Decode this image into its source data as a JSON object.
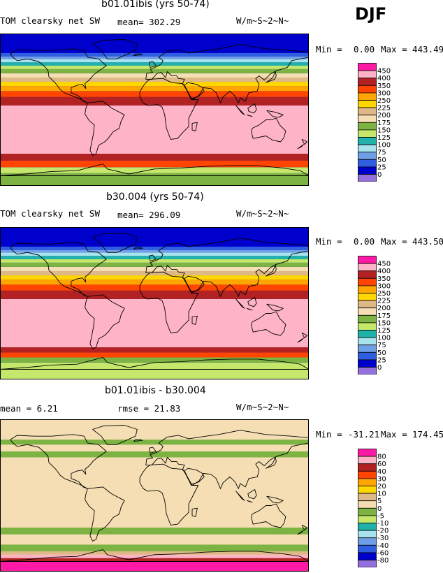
{
  "season": "DJF",
  "panels": [
    {
      "title": "b01.01ibis (yrs 50-74)",
      "left_label": "TOM clearsky net SW",
      "mid_label": "mean=  302.29",
      "units": "W/m~S~2~N~",
      "min_label": "Min =",
      "min_value": "0.00",
      "max_label": "Max =",
      "max_value": "443.49",
      "legend": [
        {
          "label": "450",
          "color": "#ff1aa6"
        },
        {
          "label": "400",
          "color": "#ffb3c6"
        },
        {
          "label": "350",
          "color": "#b22222"
        },
        {
          "label": "300",
          "color": "#ff4500"
        },
        {
          "label": "250",
          "color": "#ffa500"
        },
        {
          "label": "225",
          "color": "#ffd700"
        },
        {
          "label": "200",
          "color": "#deb887"
        },
        {
          "label": "175",
          "color": "#f5deb3"
        },
        {
          "label": "150",
          "color": "#7cb342"
        },
        {
          "label": "125",
          "color": "#c5e86c"
        },
        {
          "label": "100",
          "color": "#20b2aa"
        },
        {
          "label": "75",
          "color": "#a7e3ec"
        },
        {
          "label": "50",
          "color": "#6f9fe6"
        },
        {
          "label": "25",
          "color": "#2f5fe0"
        },
        {
          "label": "0",
          "color": "#0000cd"
        },
        {
          "label": "",
          "color": "#9370db"
        }
      ]
    },
    {
      "title": "b30.004 (yrs 50-74)",
      "left_label": "TOM clearsky net SW",
      "mid_label": "mean=  296.09",
      "units": "W/m~S~2~N~",
      "min_label": "Min =",
      "min_value": "0.00",
      "max_label": "Max =",
      "max_value": "443.50",
      "legend": [
        {
          "label": "450",
          "color": "#ff1aa6"
        },
        {
          "label": "400",
          "color": "#ffb3c6"
        },
        {
          "label": "350",
          "color": "#b22222"
        },
        {
          "label": "300",
          "color": "#ff4500"
        },
        {
          "label": "250",
          "color": "#ffa500"
        },
        {
          "label": "225",
          "color": "#ffd700"
        },
        {
          "label": "200",
          "color": "#deb887"
        },
        {
          "label": "175",
          "color": "#f5deb3"
        },
        {
          "label": "150",
          "color": "#7cb342"
        },
        {
          "label": "125",
          "color": "#c5e86c"
        },
        {
          "label": "100",
          "color": "#20b2aa"
        },
        {
          "label": "75",
          "color": "#a7e3ec"
        },
        {
          "label": "50",
          "color": "#6f9fe6"
        },
        {
          "label": "25",
          "color": "#2f5fe0"
        },
        {
          "label": "0",
          "color": "#0000cd"
        },
        {
          "label": "",
          "color": "#9370db"
        }
      ]
    },
    {
      "title": "b01.01ibis - b30.004",
      "left_label": "mean =    6.21",
      "mid_label": "rmse =  21.83",
      "units": "W/m~S~2~N~",
      "min_label": "Min =",
      "min_value": "-31.21",
      "max_label": "Max =",
      "max_value": "174.45",
      "legend": [
        {
          "label": "80",
          "color": "#ff1aa6"
        },
        {
          "label": "60",
          "color": "#ffb3c6"
        },
        {
          "label": "40",
          "color": "#b22222"
        },
        {
          "label": "30",
          "color": "#ff4500"
        },
        {
          "label": "20",
          "color": "#ffa500"
        },
        {
          "label": "10",
          "color": "#ffd700"
        },
        {
          "label": "5",
          "color": "#deb887"
        },
        {
          "label": "0",
          "color": "#f5deb3"
        },
        {
          "label": "-5",
          "color": "#7cb342"
        },
        {
          "label": "-10",
          "color": "#c5e86c"
        },
        {
          "label": "-20",
          "color": "#20b2aa"
        },
        {
          "label": "-30",
          "color": "#a7e3ec"
        },
        {
          "label": "-40",
          "color": "#6f9fe6"
        },
        {
          "label": "-60",
          "color": "#2f5fe0"
        },
        {
          "label": "-80",
          "color": "#0000cd"
        },
        {
          "label": "",
          "color": "#9370db"
        }
      ]
    }
  ],
  "chart_data": [
    {
      "type": "heatmap",
      "title": "b01.01ibis (yrs 50-74)",
      "variable": "TOM clearsky net SW",
      "season": "DJF",
      "units": "W/m~S~2~N~",
      "mean": 302.29,
      "min": 0.0,
      "max": 443.49,
      "contour_levels": [
        0,
        25,
        50,
        75,
        100,
        125,
        150,
        175,
        200,
        225,
        250,
        300,
        350,
        400,
        450
      ],
      "zonal_bands_south_to_north": [
        {
          "lat_from": -90,
          "lat_to": -75,
          "value": 150
        },
        {
          "lat_from": -75,
          "lat_to": -68,
          "value": 125
        },
        {
          "lat_from": -68,
          "lat_to": -60,
          "value": 300
        },
        {
          "lat_from": -60,
          "lat_to": -52,
          "value": 350
        },
        {
          "lat_from": -52,
          "lat_to": 5,
          "value": 400
        },
        {
          "lat_from": 5,
          "lat_to": 15,
          "value": 350
        },
        {
          "lat_from": 15,
          "lat_to": 22,
          "value": 300
        },
        {
          "lat_from": 22,
          "lat_to": 28,
          "value": 250
        },
        {
          "lat_from": 28,
          "lat_to": 33,
          "value": 225
        },
        {
          "lat_from": 33,
          "lat_to": 38,
          "value": 200
        },
        {
          "lat_from": 38,
          "lat_to": 43,
          "value": 175
        },
        {
          "lat_from": 43,
          "lat_to": 48,
          "value": 150
        },
        {
          "lat_from": 48,
          "lat_to": 52,
          "value": 125
        },
        {
          "lat_from": 52,
          "lat_to": 56,
          "value": 100
        },
        {
          "lat_from": 56,
          "lat_to": 60,
          "value": 75
        },
        {
          "lat_from": 60,
          "lat_to": 63,
          "value": 50
        },
        {
          "lat_from": 63,
          "lat_to": 67,
          "value": 25
        },
        {
          "lat_from": 67,
          "lat_to": 90,
          "value": 0
        }
      ]
    },
    {
      "type": "heatmap",
      "title": "b30.004 (yrs 50-74)",
      "variable": "TOM clearsky net SW",
      "season": "DJF",
      "units": "W/m~S~2~N~",
      "mean": 296.09,
      "min": 0.0,
      "max": 443.5,
      "contour_levels": [
        0,
        25,
        50,
        75,
        100,
        125,
        150,
        175,
        200,
        225,
        250,
        300,
        350,
        400,
        450
      ],
      "zonal_bands_south_to_north": [
        {
          "lat_from": -90,
          "lat_to": -70,
          "value": 125
        },
        {
          "lat_from": -70,
          "lat_to": -64,
          "value": 150
        },
        {
          "lat_from": -64,
          "lat_to": -58,
          "value": 300
        },
        {
          "lat_from": -58,
          "lat_to": -52,
          "value": 350
        },
        {
          "lat_from": -52,
          "lat_to": 5,
          "value": 400
        },
        {
          "lat_from": 5,
          "lat_to": 15,
          "value": 350
        },
        {
          "lat_from": 15,
          "lat_to": 22,
          "value": 300
        },
        {
          "lat_from": 22,
          "lat_to": 28,
          "value": 250
        },
        {
          "lat_from": 28,
          "lat_to": 33,
          "value": 225
        },
        {
          "lat_from": 33,
          "lat_to": 38,
          "value": 200
        },
        {
          "lat_from": 38,
          "lat_to": 43,
          "value": 175
        },
        {
          "lat_from": 43,
          "lat_to": 48,
          "value": 150
        },
        {
          "lat_from": 48,
          "lat_to": 52,
          "value": 125
        },
        {
          "lat_from": 52,
          "lat_to": 56,
          "value": 100
        },
        {
          "lat_from": 56,
          "lat_to": 60,
          "value": 75
        },
        {
          "lat_from": 60,
          "lat_to": 63,
          "value": 50
        },
        {
          "lat_from": 63,
          "lat_to": 67,
          "value": 25
        },
        {
          "lat_from": 67,
          "lat_to": 90,
          "value": 0
        }
      ]
    },
    {
      "type": "heatmap",
      "title": "b01.01ibis - b30.004",
      "season": "DJF",
      "units": "W/m~S~2~N~",
      "mean": 6.21,
      "rmse": 21.83,
      "min": -31.21,
      "max": 174.45,
      "contour_levels": [
        -80,
        -60,
        -40,
        -30,
        -20,
        -10,
        -5,
        0,
        5,
        10,
        20,
        30,
        40,
        60,
        80
      ],
      "zonal_bands_south_to_north": [
        {
          "lat_from": -90,
          "lat_to": -78,
          "value": 80
        },
        {
          "lat_from": -78,
          "lat_to": -74,
          "value": 40
        },
        {
          "lat_from": -74,
          "lat_to": -70,
          "value": 60
        },
        {
          "lat_from": -70,
          "lat_to": -66,
          "value": 5
        },
        {
          "lat_from": -66,
          "lat_to": -58,
          "value": -5
        },
        {
          "lat_from": -58,
          "lat_to": -46,
          "value": 0
        },
        {
          "lat_from": -46,
          "lat_to": -38,
          "value": -5
        },
        {
          "lat_from": -38,
          "lat_to": 45,
          "value": 0
        },
        {
          "lat_from": 45,
          "lat_to": 52,
          "value": -5
        },
        {
          "lat_from": 52,
          "lat_to": 60,
          "value": 0
        },
        {
          "lat_from": 60,
          "lat_to": 66,
          "value": -5
        },
        {
          "lat_from": 66,
          "lat_to": 90,
          "value": 0
        }
      ]
    }
  ]
}
